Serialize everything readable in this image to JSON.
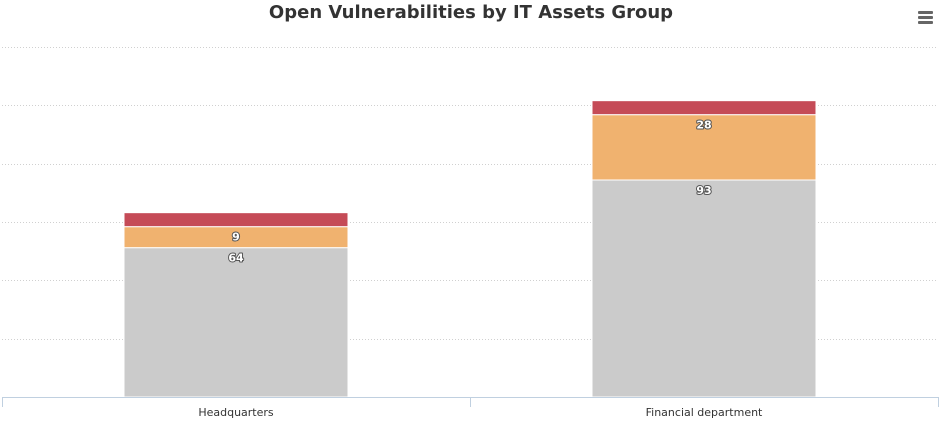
{
  "chart_data": {
    "type": "bar",
    "stacked": true,
    "title": "Open Vulnerabilities by IT Assets Group",
    "categories": [
      "Headquarters",
      "Financial department"
    ],
    "series": [
      {
        "values": [
          64,
          93
        ],
        "color": "#cbcbcb"
      },
      {
        "values": [
          9,
          28
        ],
        "color": "#f0b26f"
      },
      {
        "values": [
          6,
          6
        ],
        "color": "#c54b57"
      }
    ],
    "ylim": [
      0,
      150
    ],
    "grid": true,
    "legend": "none"
  },
  "toolbar": {
    "menu_icon": "hamburger-menu-icon"
  }
}
